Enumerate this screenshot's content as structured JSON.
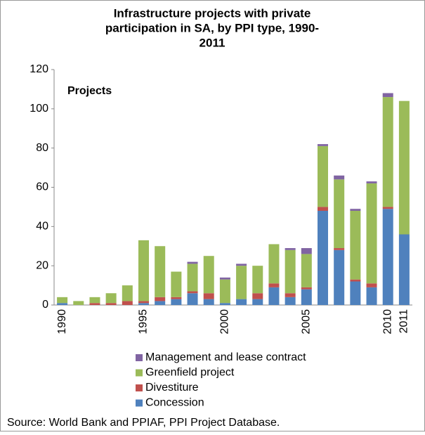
{
  "chart_data": {
    "type": "stacked_bar",
    "title": [
      "Infrastructure projects with private",
      "participation in SA, by PPI type, 1990-",
      "2011"
    ],
    "annotation": "Projects",
    "source": "Source:  World Bank and PPIAF, PPI Project Database.",
    "categories": [
      "1990",
      null,
      null,
      null,
      null,
      "1995",
      null,
      null,
      null,
      null,
      "2000",
      null,
      null,
      null,
      null,
      "2005",
      null,
      null,
      null,
      null,
      "2010",
      "2011"
    ],
    "series": [
      {
        "name": "Concession",
        "color": "#4f81bd",
        "values": [
          1,
          0,
          0,
          0,
          0,
          1,
          2,
          3,
          6,
          3,
          1,
          3,
          3,
          9,
          4,
          8,
          48,
          28,
          12,
          9,
          49,
          36
        ]
      },
      {
        "name": "Divestiture",
        "color": "#c0504d",
        "values": [
          0,
          0,
          1,
          1,
          2,
          1,
          2,
          1,
          1,
          3,
          0,
          0,
          3,
          2,
          2,
          1,
          2,
          1,
          1,
          2,
          1,
          0
        ]
      },
      {
        "name": "Greenfield project",
        "color": "#9bbb59",
        "values": [
          3,
          2,
          3,
          5,
          8,
          31,
          26,
          13,
          14,
          19,
          12,
          17,
          14,
          20,
          22,
          17,
          31,
          35,
          35,
          51,
          56,
          68
        ]
      },
      {
        "name": "Management and lease contract",
        "color": "#8064a2",
        "values": [
          0,
          0,
          0,
          0,
          0,
          0,
          0,
          0,
          1,
          0,
          1,
          1,
          0,
          0,
          1,
          3,
          1,
          2,
          1,
          1,
          2,
          0
        ]
      }
    ],
    "ylim": [
      0,
      120
    ],
    "yticks": [
      0,
      20,
      40,
      60,
      80,
      100,
      120
    ],
    "grid": false
  }
}
